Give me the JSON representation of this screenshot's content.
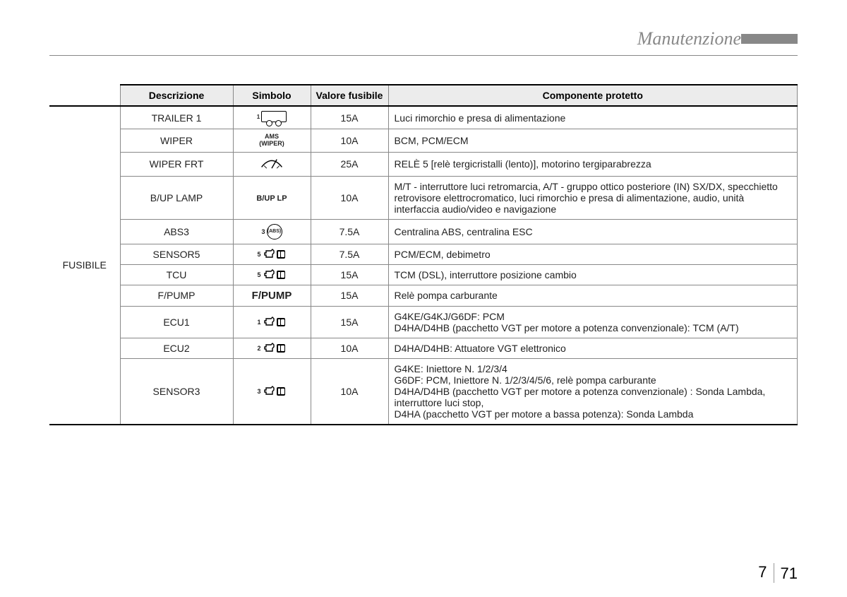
{
  "header": {
    "title": "Manutenzione"
  },
  "table": {
    "columns": {
      "descr": "Descrizione",
      "symbol": "Simbolo",
      "rating": "Valore fusibile",
      "protected": "Componente protetto"
    },
    "row_label": "FUSIBILE",
    "rows": [
      {
        "descr": "TRAILER 1",
        "symbol_text": "",
        "symbol_sup": "1",
        "symbol_type": "trailer",
        "rating": "15A",
        "protected": "Luci rimorchio e presa di alimentazione"
      },
      {
        "descr": "WIPER",
        "symbol_text": "AMS\n(WIPER)",
        "symbol_type": "text-small",
        "rating": "10A",
        "protected": "BCM, PCM/ECM"
      },
      {
        "descr": "WIPER FRT",
        "symbol_type": "wiper",
        "rating": "25A",
        "protected": "RELÈ 5 [relè tergicristalli (lento)], motorino tergiparabrezza"
      },
      {
        "descr": "B/UP LAMP",
        "symbol_text": "B/UP LP",
        "symbol_type": "text-bold",
        "rating": "10A",
        "protected": "M/T - interruttore luci retromarcia, A/T - gruppo ottico posteriore (IN) SX/DX, specchietto retrovisore elettrocromatico, luci rimorchio e presa di alimentazione, audio, unità interfaccia audio/video e navigazione"
      },
      {
        "descr": "ABS3",
        "symbol_sup": "3",
        "symbol_type": "abs",
        "rating": "7.5A",
        "protected": "Centralina ABS, centralina ESC"
      },
      {
        "descr": "SENSOR5",
        "symbol_sup": "5",
        "symbol_type": "engine",
        "rating": "7.5A",
        "protected": "PCM/ECM, debimetro"
      },
      {
        "descr": "TCU",
        "symbol_sup": "5",
        "symbol_type": "engine",
        "rating": "15A",
        "protected": "TCM (DSL), interruttore posizione cambio"
      },
      {
        "descr": "F/PUMP",
        "symbol_text": "F/PUMP",
        "symbol_type": "text-big",
        "rating": "15A",
        "protected": "Relè pompa carburante"
      },
      {
        "descr": "ECU1",
        "symbol_sup": "1",
        "symbol_type": "engine",
        "rating": "15A",
        "protected": "G4KE/G4KJ/G6DF: PCM\nD4HA/D4HB (pacchetto VGT per motore a potenza convenzionale): TCM (A/T)"
      },
      {
        "descr": "ECU2",
        "symbol_sup": "2",
        "symbol_type": "engine",
        "rating": "10A",
        "protected": "D4HA/D4HB: Attuatore VGT elettronico"
      },
      {
        "descr": "SENSOR3",
        "symbol_sup": "3",
        "symbol_type": "engine",
        "rating": "10A",
        "protected": "G4KE: Iniettore N. 1/2/3/4\nG6DF: PCM, Iniettore N. 1/2/3/4/5/6, relè pompa carburante\nD4HA/D4HB (pacchetto VGT per motore a potenza convenzionale) : Sonda Lambda, interruttore luci stop,\nD4HA (pacchetto VGT per motore a bassa potenza): Sonda Lambda"
      }
    ]
  },
  "footer": {
    "chapter": "7",
    "page": "71"
  }
}
